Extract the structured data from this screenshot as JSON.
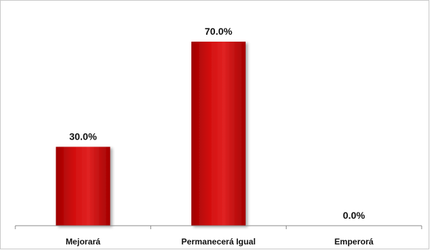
{
  "chart_data": {
    "type": "bar",
    "categories": [
      "Mejorará",
      "Permanecerá Igual",
      "Emperorá"
    ],
    "values": [
      30.0,
      70.0,
      0.0
    ],
    "data_labels": [
      "30.0%",
      "70.0%",
      "0.0%"
    ],
    "ylim": [
      0,
      100
    ],
    "grid": false,
    "legend": "none",
    "bar_color": "#c00000",
    "bar_highlight": "#e03030",
    "bar_shadow": "#8a0000"
  }
}
